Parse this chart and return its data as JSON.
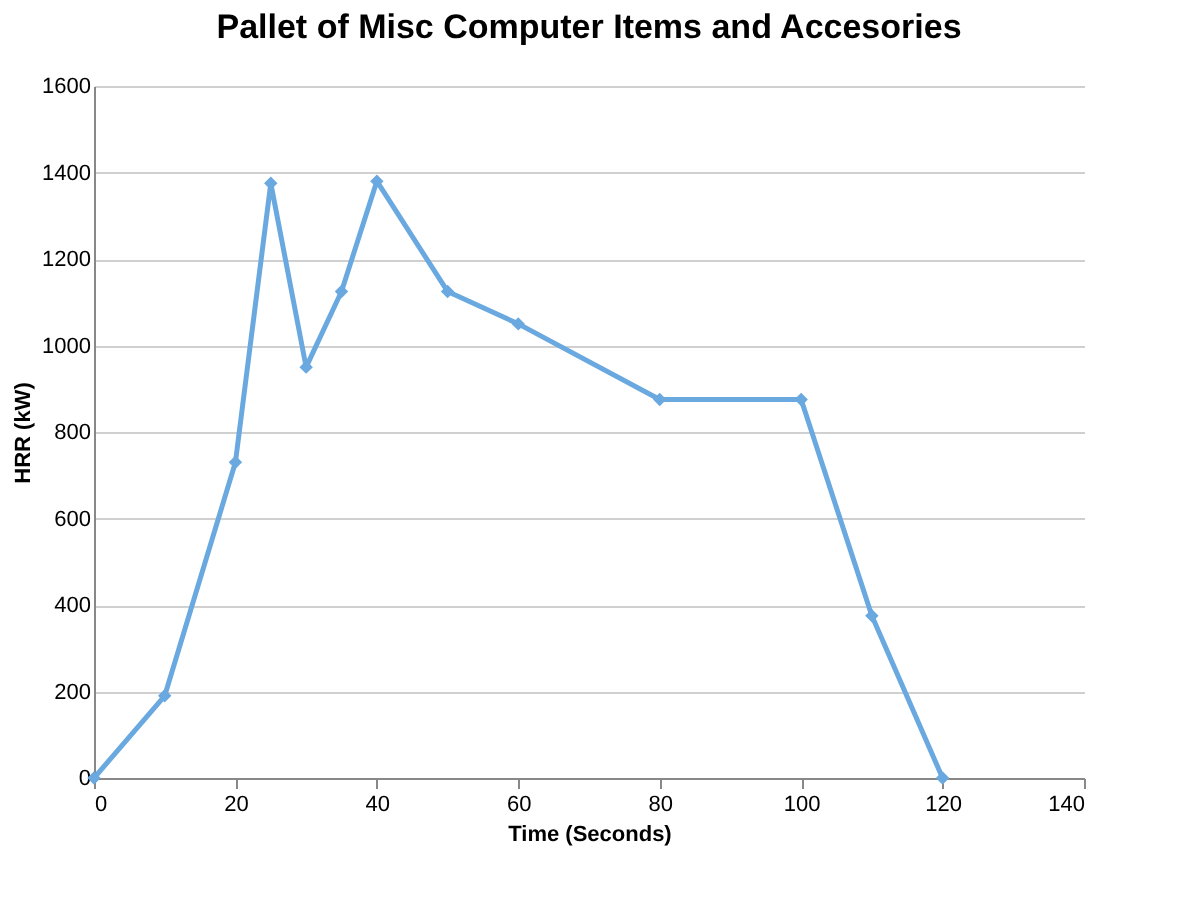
{
  "chart_data": {
    "type": "line",
    "title": "Pallet of Misc Computer Items and Accesories",
    "xlabel": "Time (Seconds)",
    "ylabel": "HRR (kW)",
    "x": [
      0,
      10,
      20,
      25,
      30,
      35,
      40,
      50,
      60,
      80,
      100,
      110,
      120
    ],
    "series": [
      {
        "color": "#6aa8e0",
        "values": [
          0,
          190,
          730,
          1375,
          950,
          1125,
          1380,
          1125,
          1050,
          875,
          875,
          375,
          0
        ]
      }
    ],
    "xlim": [
      0,
      140
    ],
    "xticks": [
      0,
      20,
      40,
      60,
      80,
      100,
      120,
      140
    ],
    "ylim": [
      0,
      1600
    ],
    "yticks": [
      0,
      200,
      400,
      600,
      800,
      1000,
      1200,
      1400,
      1600
    ],
    "grid": "y",
    "marker": "diamond",
    "line_style": "solid"
  }
}
